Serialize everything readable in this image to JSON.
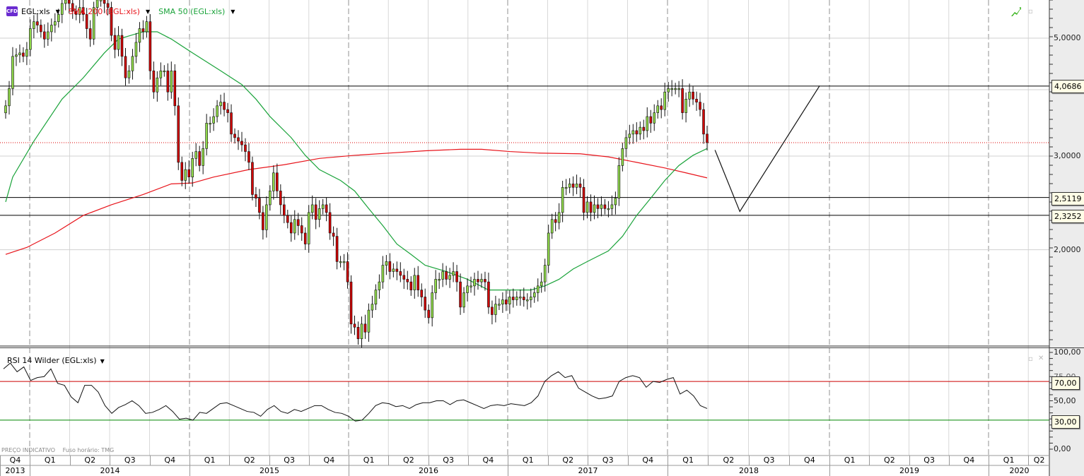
{
  "instrument": {
    "icon": "cfd-icon",
    "icon_text": "CFD",
    "symbol": "EGL:xls"
  },
  "indicators": [
    {
      "label": "SMA 200 (EGL:xls)",
      "color": "#e8141b"
    },
    {
      "label": "SMA 50 (EGL:xls)",
      "color": "#1aa33a"
    }
  ],
  "rsi_panel": {
    "label": "RSI 14 Wilder (EGL:xls)",
    "upper": 70,
    "lower": 30,
    "upper_color": "#cc0000",
    "lower_color": "#008800",
    "axis_labels": [
      "100,00",
      "75,00",
      "50,00",
      "0,00"
    ],
    "upper_label": "70,00",
    "lower_label": "30,00"
  },
  "footer": {
    "price_note": "PREÇO INDICATIVO",
    "timezone": "Fuso horário: TMG"
  },
  "price_axis": {
    "scale": "log",
    "labels": [
      "5,0000",
      "3,0000",
      "2,0000"
    ],
    "gridlines": [
      2,
      3,
      4,
      5
    ]
  },
  "horizontal_levels": [
    {
      "value": 4.0686,
      "label": "4,0686"
    },
    {
      "value": 2.5119,
      "label": "2,5119"
    },
    {
      "value": 2.3252,
      "label": "2,3252"
    }
  ],
  "last_price": 3.18,
  "projection": [
    {
      "date": "2018-04-18",
      "price": 3.08
    },
    {
      "date": "2018-06-13",
      "price": 2.36
    },
    {
      "date": "2018-12-10",
      "price": 4.07
    }
  ],
  "time_axis": {
    "quarters": [
      "Q4",
      "Q1",
      "Q2",
      "Q3",
      "Q4",
      "Q1",
      "Q2",
      "Q3",
      "Q4",
      "Q1",
      "Q2",
      "Q3",
      "Q4",
      "Q1",
      "Q2",
      "Q3",
      "Q4",
      "Q1",
      "Q2",
      "Q3",
      "Q4",
      "Q1",
      "Q2",
      "Q3",
      "Q4",
      "Q1",
      "Q2"
    ],
    "years": [
      "2013",
      "2014",
      "2015",
      "2016",
      "2017",
      "2018",
      "2019",
      "2020"
    ]
  },
  "colors": {
    "up": "#8fd84a",
    "down": "#d00000",
    "sma200": "#e8141b",
    "sma50": "#1aa33a",
    "rsi": "#111111"
  },
  "chart_data": {
    "type": "candlestick",
    "frequency": "weekly",
    "closes": [
      3.73,
      4.02,
      4.62,
      4.65,
      4.69,
      4.62,
      4.76,
      5.21,
      5.37,
      5.29,
      5.14,
      4.98,
      5.14,
      5.29,
      5.37,
      5.54,
      5.81,
      5.9,
      5.81,
      5.62,
      5.54,
      5.71,
      5.54,
      5.21,
      4.98,
      5.71,
      5.9,
      5.9,
      5.81,
      5.71,
      5.06,
      4.76,
      5.06,
      4.62,
      4.21,
      4.34,
      4.62,
      4.91,
      5.21,
      5.14,
      5.37,
      4.34,
      3.96,
      4.21,
      4.34,
      4.34,
      3.96,
      4.34,
      3.73,
      2.92,
      2.7,
      2.83,
      2.74,
      2.97,
      3.06,
      2.88,
      3.1,
      3.46,
      3.46,
      3.56,
      3.73,
      3.79,
      3.67,
      3.62,
      3.3,
      3.25,
      3.2,
      3.15,
      3.06,
      2.92,
      2.54,
      2.5,
      2.35,
      2.18,
      2.43,
      2.58,
      2.79,
      2.58,
      2.43,
      2.32,
      2.25,
      2.15,
      2.28,
      2.22,
      2.15,
      2.05,
      2.35,
      2.43,
      2.28,
      2.39,
      2.43,
      2.35,
      2.15,
      2.12,
      1.9,
      1.9,
      1.9,
      1.74,
      1.45,
      1.43,
      1.36,
      1.45,
      1.4,
      1.54,
      1.58,
      1.68,
      1.74,
      1.87,
      1.9,
      1.82,
      1.84,
      1.82,
      1.79,
      1.76,
      1.74,
      1.68,
      1.79,
      1.68,
      1.63,
      1.54,
      1.49,
      1.66,
      1.76,
      1.76,
      1.82,
      1.76,
      1.79,
      1.82,
      1.74,
      1.56,
      1.66,
      1.71,
      1.71,
      1.76,
      1.74,
      1.76,
      1.74,
      1.56,
      1.51,
      1.58,
      1.58,
      1.61,
      1.58,
      1.63,
      1.61,
      1.63,
      1.63,
      1.61,
      1.61,
      1.63,
      1.66,
      1.71,
      1.74,
      1.87,
      2.15,
      2.28,
      2.25,
      2.35,
      2.62,
      2.62,
      2.66,
      2.62,
      2.66,
      2.62,
      2.35,
      2.46,
      2.35,
      2.43,
      2.39,
      2.43,
      2.39,
      2.39,
      2.43,
      2.5,
      2.88,
      3.1,
      3.25,
      3.3,
      3.35,
      3.3,
      3.4,
      3.35,
      3.56,
      3.46,
      3.62,
      3.73,
      3.67,
      3.96,
      4.02,
      4.02,
      4.02,
      4.02,
      3.62,
      3.84,
      3.96,
      3.84,
      3.79,
      3.67,
      3.3,
      3.18
    ],
    "sma50": [
      [
        0,
        2.46
      ],
      [
        2,
        2.74
      ],
      [
        8,
        3.2
      ],
      [
        16,
        3.84
      ],
      [
        22,
        4.21
      ],
      [
        28,
        4.69
      ],
      [
        32,
        4.98
      ],
      [
        39,
        5.14
      ],
      [
        43,
        5.14
      ],
      [
        47,
        4.98
      ],
      [
        53,
        4.69
      ],
      [
        61,
        4.34
      ],
      [
        67,
        4.09
      ],
      [
        71,
        3.84
      ],
      [
        75,
        3.56
      ],
      [
        81,
        3.25
      ],
      [
        85,
        3.01
      ],
      [
        89,
        2.83
      ],
      [
        95,
        2.7
      ],
      [
        99,
        2.58
      ],
      [
        103,
        2.39
      ],
      [
        107,
        2.22
      ],
      [
        111,
        2.05
      ],
      [
        115,
        1.96
      ],
      [
        119,
        1.87
      ],
      [
        125,
        1.82
      ],
      [
        131,
        1.76
      ],
      [
        137,
        1.68
      ],
      [
        143,
        1.68
      ],
      [
        149,
        1.68
      ],
      [
        153,
        1.71
      ],
      [
        157,
        1.76
      ],
      [
        161,
        1.84
      ],
      [
        165,
        1.9
      ],
      [
        171,
        1.99
      ],
      [
        175,
        2.12
      ],
      [
        179,
        2.32
      ],
      [
        183,
        2.5
      ],
      [
        187,
        2.7
      ],
      [
        191,
        2.88
      ],
      [
        195,
        3.01
      ],
      [
        199,
        3.1
      ]
    ],
    "sma200": [
      [
        0,
        1.96
      ],
      [
        6,
        2.02
      ],
      [
        14,
        2.15
      ],
      [
        22,
        2.32
      ],
      [
        30,
        2.43
      ],
      [
        39,
        2.54
      ],
      [
        47,
        2.66
      ],
      [
        53,
        2.67
      ],
      [
        59,
        2.74
      ],
      [
        69,
        2.83
      ],
      [
        79,
        2.89
      ],
      [
        89,
        2.97
      ],
      [
        99,
        3.01
      ],
      [
        109,
        3.04
      ],
      [
        119,
        3.07
      ],
      [
        129,
        3.09
      ],
      [
        135,
        3.09
      ],
      [
        143,
        3.06
      ],
      [
        151,
        3.04
      ],
      [
        163,
        3.03
      ],
      [
        171,
        2.99
      ],
      [
        179,
        2.92
      ],
      [
        187,
        2.85
      ],
      [
        193,
        2.79
      ],
      [
        199,
        2.73
      ]
    ],
    "rsi": [
      83,
      89,
      80,
      85,
      71,
      74,
      75,
      83,
      68,
      66,
      54,
      48,
      66,
      66,
      59,
      45,
      37,
      43,
      46,
      50,
      45,
      37,
      38,
      41,
      45,
      39,
      31,
      32,
      30,
      38,
      37,
      42,
      47,
      48,
      45,
      42,
      39,
      38,
      34,
      41,
      45,
      39,
      37,
      41,
      39,
      42,
      45,
      45,
      41,
      38,
      37,
      34,
      29,
      30,
      37,
      45,
      48,
      47,
      44,
      45,
      42,
      46,
      48,
      48,
      50,
      50,
      46,
      50,
      51,
      48,
      45,
      42,
      45,
      46,
      45,
      47,
      46,
      45,
      48,
      55,
      70,
      76,
      80,
      74,
      76,
      63,
      59,
      55,
      52,
      53,
      55,
      70,
      74,
      76,
      74,
      64,
      70,
      69,
      72,
      74,
      57,
      61,
      55,
      45,
      42
    ],
    "ylim": [
      1.32,
      5.9
    ],
    "rsi_ylim": [
      0,
      100
    ]
  }
}
